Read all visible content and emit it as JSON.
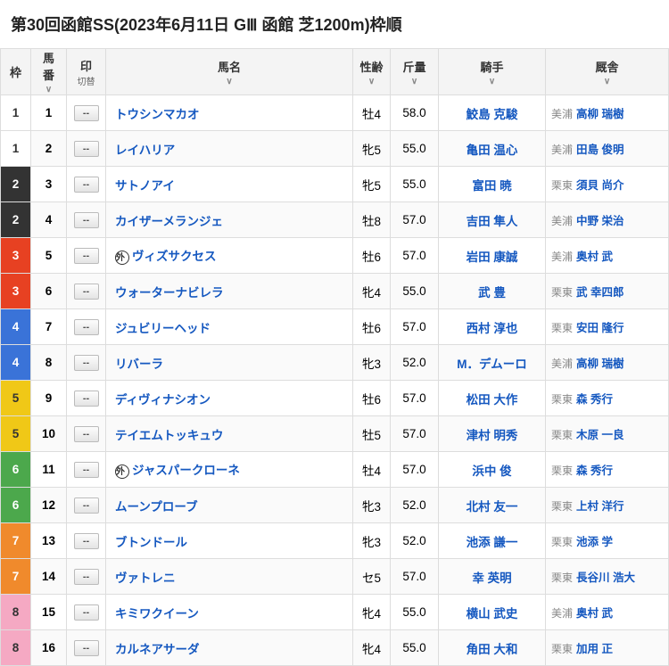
{
  "title": "第30回函館SS(2023年6月11日 GⅢ 函館 芝1200m)枠順",
  "columns": {
    "waku": "枠",
    "num": "馬\n番",
    "mark": "印",
    "mark_sub": "切替",
    "name": "馬名",
    "sexage": "性齢",
    "weight": "斤量",
    "jockey": "騎手",
    "trainer": "厩舎",
    "sort": "∨"
  },
  "waku_colors": {
    "1": {
      "bg": "#ffffff",
      "fg": "#333333",
      "border": "#ddd"
    },
    "2": {
      "bg": "#333333",
      "fg": "#ffffff"
    },
    "3": {
      "bg": "#e74122",
      "fg": "#ffffff"
    },
    "4": {
      "bg": "#3a73d8",
      "fg": "#ffffff"
    },
    "5": {
      "bg": "#f0c817",
      "fg": "#333333"
    },
    "6": {
      "bg": "#4ca84c",
      "fg": "#ffffff"
    },
    "7": {
      "bg": "#f08a2c",
      "fg": "#ffffff"
    },
    "8": {
      "bg": "#f5a9c3",
      "fg": "#333333"
    }
  },
  "mark_label": "--",
  "gai_label": "外",
  "rows": [
    {
      "waku": "1",
      "num": "1",
      "name": "トウシンマカオ",
      "gai": false,
      "sexage": "牡4",
      "weight": "58.0",
      "jockey": "鮫島 克駿",
      "loc": "美浦",
      "trainer": "高柳 瑞樹",
      "zebra": false
    },
    {
      "waku": "1",
      "num": "2",
      "name": "レイハリア",
      "gai": false,
      "sexage": "牝5",
      "weight": "55.0",
      "jockey": "亀田 温心",
      "loc": "美浦",
      "trainer": "田島 俊明",
      "zebra": true
    },
    {
      "waku": "2",
      "num": "3",
      "name": "サトノアイ",
      "gai": false,
      "sexage": "牝5",
      "weight": "55.0",
      "jockey": "富田 暁",
      "loc": "栗東",
      "trainer": "須貝 尚介",
      "zebra": false
    },
    {
      "waku": "2",
      "num": "4",
      "name": "カイザーメランジェ",
      "gai": false,
      "sexage": "牡8",
      "weight": "57.0",
      "jockey": "吉田 隼人",
      "loc": "美浦",
      "trainer": "中野 栄治",
      "zebra": true
    },
    {
      "waku": "3",
      "num": "5",
      "name": "ヴィズサクセス",
      "gai": true,
      "sexage": "牡6",
      "weight": "57.0",
      "jockey": "岩田 康誠",
      "loc": "美浦",
      "trainer": "奥村 武",
      "zebra": false
    },
    {
      "waku": "3",
      "num": "6",
      "name": "ウォーターナビレラ",
      "gai": false,
      "sexage": "牝4",
      "weight": "55.0",
      "jockey": "武 豊",
      "loc": "栗東",
      "trainer": "武 幸四郎",
      "zebra": true
    },
    {
      "waku": "4",
      "num": "7",
      "name": "ジュビリーヘッド",
      "gai": false,
      "sexage": "牡6",
      "weight": "57.0",
      "jockey": "西村 淳也",
      "loc": "栗東",
      "trainer": "安田 隆行",
      "zebra": false
    },
    {
      "waku": "4",
      "num": "8",
      "name": "リバーラ",
      "gai": false,
      "sexage": "牝3",
      "weight": "52.0",
      "jockey": "M．デムーロ",
      "loc": "美浦",
      "trainer": "高柳 瑞樹",
      "zebra": true
    },
    {
      "waku": "5",
      "num": "9",
      "name": "ディヴィナシオン",
      "gai": false,
      "sexage": "牡6",
      "weight": "57.0",
      "jockey": "松田 大作",
      "loc": "栗東",
      "trainer": "森 秀行",
      "zebra": false
    },
    {
      "waku": "5",
      "num": "10",
      "name": "テイエムトッキュウ",
      "gai": false,
      "sexage": "牡5",
      "weight": "57.0",
      "jockey": "津村 明秀",
      "loc": "栗東",
      "trainer": "木原 一良",
      "zebra": true
    },
    {
      "waku": "6",
      "num": "11",
      "name": "ジャスパークローネ",
      "gai": true,
      "sexage": "牡4",
      "weight": "57.0",
      "jockey": "浜中 俊",
      "loc": "栗東",
      "trainer": "森 秀行",
      "zebra": false
    },
    {
      "waku": "6",
      "num": "12",
      "name": "ムーンプローブ",
      "gai": false,
      "sexage": "牝3",
      "weight": "52.0",
      "jockey": "北村 友一",
      "loc": "栗東",
      "trainer": "上村 洋行",
      "zebra": true
    },
    {
      "waku": "7",
      "num": "13",
      "name": "ブトンドール",
      "gai": false,
      "sexage": "牝3",
      "weight": "52.0",
      "jockey": "池添 謙一",
      "loc": "栗東",
      "trainer": "池添 学",
      "zebra": false
    },
    {
      "waku": "7",
      "num": "14",
      "name": "ヴァトレニ",
      "gai": false,
      "sexage": "セ5",
      "weight": "57.0",
      "jockey": "幸 英明",
      "loc": "栗東",
      "trainer": "長谷川 浩大",
      "zebra": true
    },
    {
      "waku": "8",
      "num": "15",
      "name": "キミワクイーン",
      "gai": false,
      "sexage": "牝4",
      "weight": "55.0",
      "jockey": "横山 武史",
      "loc": "美浦",
      "trainer": "奥村 武",
      "zebra": false
    },
    {
      "waku": "8",
      "num": "16",
      "name": "カルネアサーダ",
      "gai": false,
      "sexage": "牝4",
      "weight": "55.0",
      "jockey": "角田 大和",
      "loc": "栗東",
      "trainer": "加用 正",
      "zebra": true
    }
  ]
}
